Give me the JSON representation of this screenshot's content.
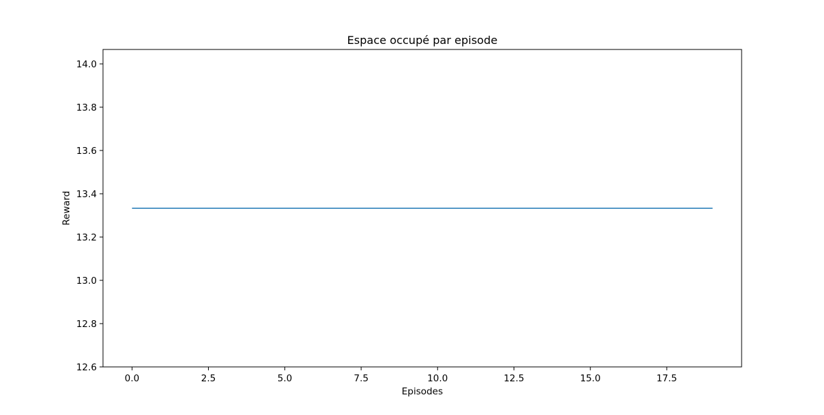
{
  "chart_data": {
    "type": "line",
    "title": "Espace occupé par episode",
    "xlabel": "Episodes",
    "ylabel": "Reward",
    "xlim": [
      -0.95,
      19.95
    ],
    "ylim": [
      12.6,
      14.0667
    ],
    "xticks": [
      0,
      2.5,
      5,
      7.5,
      10,
      12.5,
      15,
      17.5
    ],
    "xtick_labels": [
      "0.0",
      "2.5",
      "5.0",
      "7.5",
      "10.0",
      "12.5",
      "15.0",
      "17.5"
    ],
    "yticks": [
      12.6,
      12.8,
      13.0,
      13.2,
      13.4,
      13.6,
      13.8,
      14.0
    ],
    "ytick_labels": [
      "12.6",
      "12.8",
      "13.0",
      "13.2",
      "13.4",
      "13.6",
      "13.8",
      "14.0"
    ],
    "grid": false,
    "series": [
      {
        "color": "#1f77b4",
        "x": [
          0,
          1,
          2,
          3,
          4,
          5,
          6,
          7,
          8,
          9,
          10,
          11,
          12,
          13,
          14,
          15,
          16,
          17,
          18,
          19
        ],
        "y": [
          13.333,
          13.333,
          13.333,
          13.333,
          13.333,
          13.333,
          13.333,
          13.333,
          13.333,
          13.333,
          13.333,
          13.333,
          13.333,
          13.333,
          13.333,
          13.333,
          13.333,
          13.333,
          13.333,
          13.333
        ]
      }
    ]
  }
}
